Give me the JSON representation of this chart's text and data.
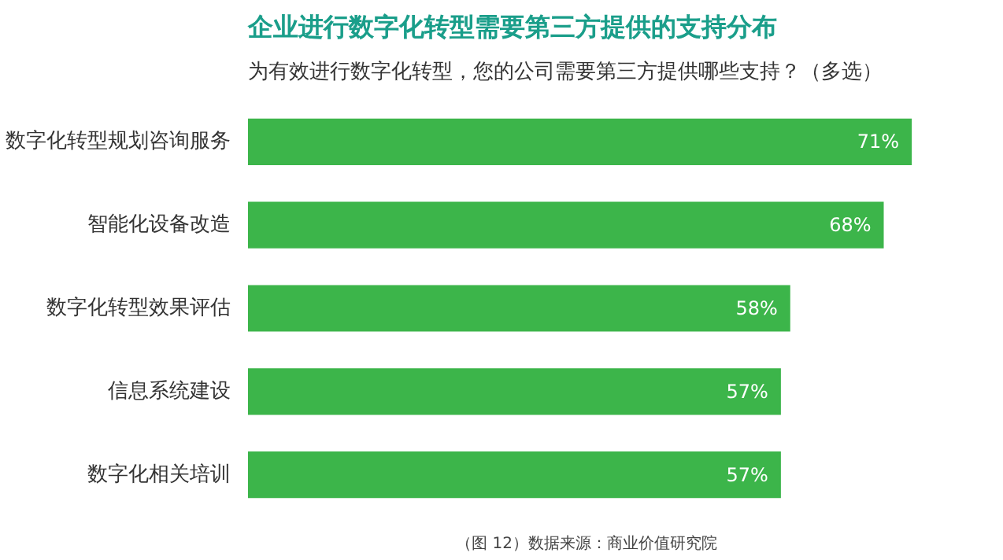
{
  "chart_data": {
    "type": "bar",
    "orientation": "horizontal",
    "title": "企业进行数字化转型需要第三方提供的支持分布",
    "subtitle": "为有效进行数字化转型，您的公司需要第三方提供哪些支持？（多选）",
    "categories": [
      "数字化转型规划咨询服务",
      "智能化设备改造",
      "数字化转型效果评估",
      "信息系统建设",
      "数字化相关培训"
    ],
    "values": [
      71,
      68,
      58,
      57,
      57
    ],
    "color": "#3cb54a",
    "value_labels": [
      "71%",
      "68%",
      "58%",
      "57%",
      "57%"
    ],
    "annotations": [
      "（图 12）数据来源：商业价值研究院"
    ],
    "grid": false
  }
}
